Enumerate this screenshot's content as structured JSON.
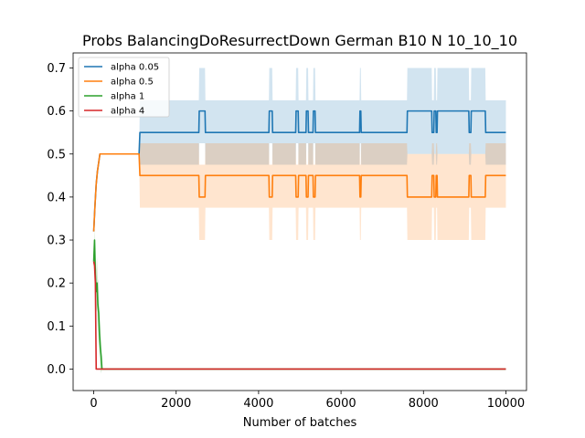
{
  "chart_data": {
    "type": "line",
    "title": "Probs BalancingDoResurrectDown German B10 N 10_10_10",
    "xlabel": "Number of batches",
    "ylabel": "",
    "xlim": [
      -500,
      10500
    ],
    "ylim": [
      -0.05,
      0.735
    ],
    "xticks": [
      0,
      2000,
      4000,
      6000,
      8000,
      10000
    ],
    "xtick_labels": [
      "0",
      "2000",
      "4000",
      "6000",
      "8000",
      "10000"
    ],
    "yticks": [
      0.0,
      0.1,
      0.2,
      0.3,
      0.4,
      0.5,
      0.6,
      0.7
    ],
    "ytick_labels": [
      "0.0",
      "0.1",
      "0.2",
      "0.3",
      "0.4",
      "0.5",
      "0.6",
      "0.7"
    ],
    "grid": false,
    "legend_position": "upper-left",
    "series": [
      {
        "name": "alpha 0.05",
        "color": "#1f77b4",
        "x": [
          0,
          30,
          60,
          90,
          120,
          150,
          180,
          1100,
          1120,
          2550,
          2560,
          2700,
          2710,
          4250,
          4260,
          4330,
          4340,
          4900,
          4910,
          4960,
          4970,
          5150,
          5160,
          5200,
          5210,
          5320,
          5330,
          5370,
          5380,
          6450,
          6460,
          6480,
          6490,
          7600,
          7610,
          7700,
          7710,
          8200,
          8210,
          8250,
          8260,
          8300,
          8310,
          8330,
          8340,
          9100,
          9110,
          9150,
          9160,
          9300,
          9310,
          9500,
          9510,
          10000
        ],
        "y": [
          0.32,
          0.38,
          0.43,
          0.46,
          0.48,
          0.5,
          0.5,
          0.5,
          0.55,
          0.55,
          0.6,
          0.6,
          0.55,
          0.55,
          0.6,
          0.6,
          0.55,
          0.55,
          0.6,
          0.6,
          0.55,
          0.55,
          0.6,
          0.6,
          0.55,
          0.55,
          0.6,
          0.6,
          0.55,
          0.55,
          0.6,
          0.6,
          0.55,
          0.55,
          0.6,
          0.6,
          0.6,
          0.6,
          0.55,
          0.55,
          0.6,
          0.6,
          0.55,
          0.55,
          0.6,
          0.6,
          0.55,
          0.55,
          0.6,
          0.6,
          0.6,
          0.6,
          0.55,
          0.55
        ],
        "lower": [
          0.32,
          0.38,
          0.43,
          0.46,
          0.48,
          0.5,
          0.5,
          0.5,
          0.475,
          0.475,
          0.525,
          0.525,
          0.475,
          0.475,
          0.525,
          0.525,
          0.475,
          0.475,
          0.525,
          0.525,
          0.475,
          0.475,
          0.525,
          0.525,
          0.475,
          0.475,
          0.525,
          0.525,
          0.475,
          0.475,
          0.525,
          0.525,
          0.475,
          0.475,
          0.5,
          0.5,
          0.5,
          0.5,
          0.475,
          0.475,
          0.5,
          0.5,
          0.475,
          0.475,
          0.5,
          0.5,
          0.475,
          0.475,
          0.5,
          0.5,
          0.5,
          0.5,
          0.475,
          0.475
        ],
        "upper": [
          0.32,
          0.38,
          0.43,
          0.46,
          0.48,
          0.5,
          0.5,
          0.5,
          0.625,
          0.625,
          0.7,
          0.7,
          0.625,
          0.625,
          0.7,
          0.7,
          0.625,
          0.625,
          0.7,
          0.7,
          0.625,
          0.625,
          0.7,
          0.7,
          0.625,
          0.625,
          0.7,
          0.7,
          0.625,
          0.625,
          0.7,
          0.7,
          0.625,
          0.625,
          0.7,
          0.7,
          0.7,
          0.7,
          0.625,
          0.625,
          0.7,
          0.7,
          0.625,
          0.625,
          0.7,
          0.7,
          0.625,
          0.625,
          0.7,
          0.7,
          0.7,
          0.7,
          0.625,
          0.625
        ]
      },
      {
        "name": "alpha 0.5",
        "color": "#ff7f0e",
        "x": [
          0,
          30,
          60,
          90,
          120,
          150,
          180,
          1100,
          1120,
          2550,
          2560,
          2700,
          2710,
          4250,
          4260,
          4330,
          4340,
          4900,
          4910,
          4960,
          4970,
          5150,
          5160,
          5200,
          5210,
          5320,
          5330,
          5370,
          5380,
          6450,
          6460,
          6480,
          6490,
          7600,
          7610,
          7700,
          7710,
          8200,
          8210,
          8250,
          8260,
          8300,
          8310,
          8330,
          8340,
          9100,
          9110,
          9150,
          9160,
          9300,
          9310,
          9500,
          9510,
          10000
        ],
        "y": [
          0.32,
          0.38,
          0.43,
          0.46,
          0.48,
          0.5,
          0.5,
          0.5,
          0.45,
          0.45,
          0.4,
          0.4,
          0.45,
          0.45,
          0.4,
          0.4,
          0.45,
          0.45,
          0.4,
          0.4,
          0.45,
          0.45,
          0.4,
          0.4,
          0.45,
          0.45,
          0.4,
          0.4,
          0.45,
          0.45,
          0.4,
          0.4,
          0.45,
          0.45,
          0.4,
          0.4,
          0.4,
          0.4,
          0.45,
          0.45,
          0.4,
          0.4,
          0.45,
          0.45,
          0.4,
          0.4,
          0.45,
          0.45,
          0.4,
          0.4,
          0.4,
          0.4,
          0.45,
          0.45
        ],
        "lower": [
          0.32,
          0.38,
          0.43,
          0.46,
          0.48,
          0.5,
          0.5,
          0.5,
          0.375,
          0.375,
          0.3,
          0.3,
          0.375,
          0.375,
          0.3,
          0.3,
          0.375,
          0.375,
          0.3,
          0.3,
          0.375,
          0.375,
          0.3,
          0.3,
          0.375,
          0.375,
          0.3,
          0.3,
          0.375,
          0.375,
          0.3,
          0.3,
          0.375,
          0.375,
          0.3,
          0.3,
          0.3,
          0.3,
          0.375,
          0.375,
          0.3,
          0.3,
          0.375,
          0.375,
          0.3,
          0.3,
          0.375,
          0.375,
          0.3,
          0.3,
          0.3,
          0.3,
          0.375,
          0.375
        ],
        "upper": [
          0.32,
          0.38,
          0.43,
          0.46,
          0.48,
          0.5,
          0.5,
          0.5,
          0.525,
          0.525,
          0.475,
          0.475,
          0.525,
          0.525,
          0.475,
          0.475,
          0.525,
          0.525,
          0.475,
          0.475,
          0.525,
          0.525,
          0.475,
          0.475,
          0.525,
          0.525,
          0.475,
          0.475,
          0.525,
          0.525,
          0.475,
          0.475,
          0.525,
          0.525,
          0.5,
          0.5,
          0.5,
          0.5,
          0.525,
          0.525,
          0.5,
          0.5,
          0.525,
          0.525,
          0.5,
          0.5,
          0.525,
          0.525,
          0.5,
          0.5,
          0.5,
          0.5,
          0.525,
          0.525
        ]
      },
      {
        "name": "alpha 1",
        "color": "#2ca02c",
        "x": [
          0,
          20,
          40,
          60,
          80,
          100,
          120,
          140,
          160,
          180,
          200,
          10000
        ],
        "y": [
          0.25,
          0.3,
          0.22,
          0.18,
          0.2,
          0.15,
          0.13,
          0.08,
          0.05,
          0.03,
          0.0,
          0.0
        ],
        "lower": [
          0.25,
          0.27,
          0.18,
          0.13,
          0.14,
          0.09,
          0.06,
          0.03,
          0.0,
          -0.01,
          0.0,
          0.0
        ],
        "upper": [
          0.25,
          0.33,
          0.26,
          0.23,
          0.26,
          0.21,
          0.2,
          0.13,
          0.1,
          0.07,
          0.0,
          0.0
        ]
      },
      {
        "name": "alpha 4",
        "color": "#d62728",
        "x": [
          0,
          20,
          40,
          60,
          80,
          10000
        ],
        "y": [
          0.25,
          0.24,
          0.2,
          0.0,
          0.0,
          0.0
        ],
        "lower": [
          0.25,
          0.24,
          0.2,
          0.0,
          0.0,
          0.0
        ],
        "upper": [
          0.25,
          0.24,
          0.2,
          0.0,
          0.0,
          0.0
        ]
      }
    ]
  }
}
